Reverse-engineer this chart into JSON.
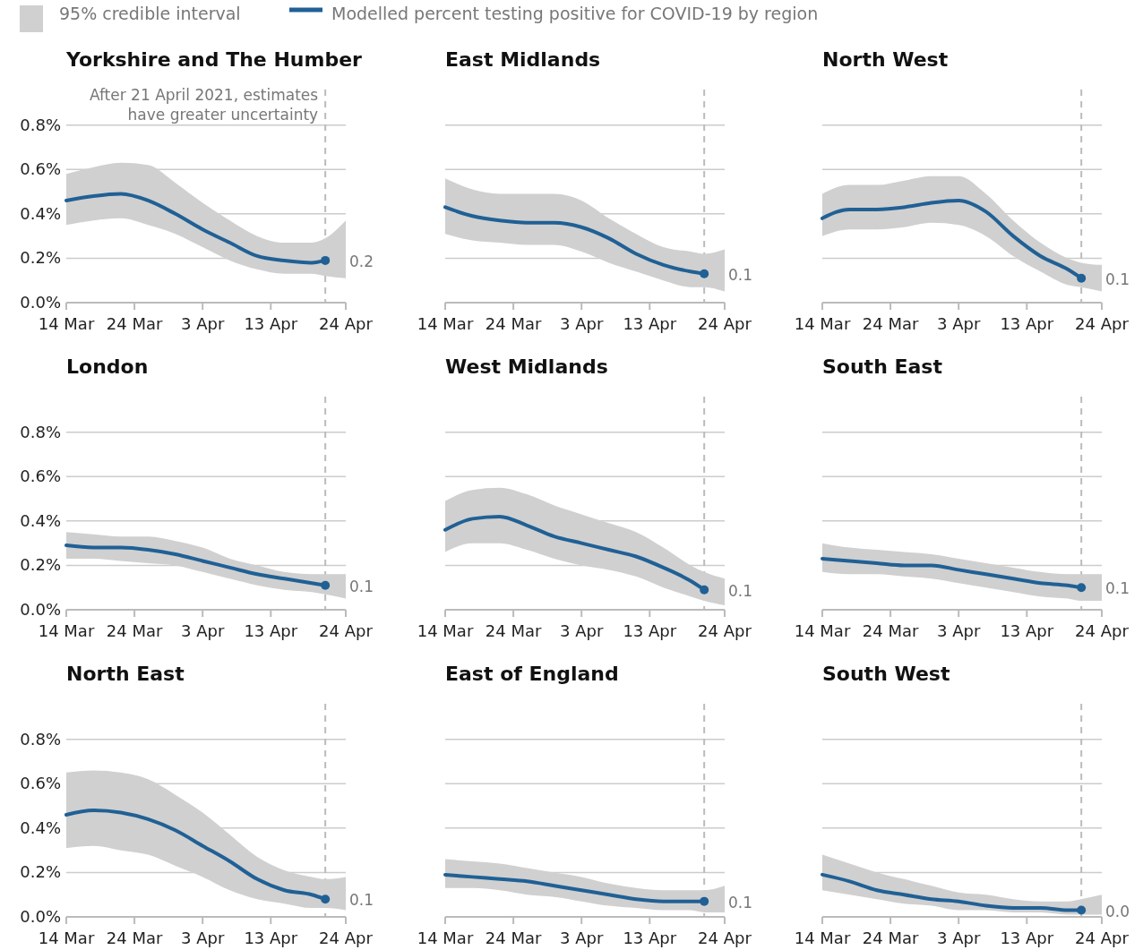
{
  "chart_data": [
    {
      "type": "line",
      "title": "Yorkshire and The Humber",
      "x": [
        "2021-03-14",
        "2021-03-18",
        "2021-03-22",
        "2021-03-26",
        "2021-03-30",
        "2021-04-03",
        "2021-04-07",
        "2021-04-11",
        "2021-04-15",
        "2021-04-19",
        "2021-04-21",
        "2021-04-24"
      ],
      "xlim": [
        "2021-03-14",
        "2021-04-24"
      ],
      "xticks": [
        {
          "value": "2021-03-14",
          "label": "14 Mar"
        },
        {
          "value": "2021-03-24",
          "label": "24 Mar"
        },
        {
          "value": "2021-04-03",
          "label": "3 Apr"
        },
        {
          "value": "2021-04-13",
          "label": "13 Apr"
        },
        {
          "value": "2021-04-24",
          "label": "24 Apr"
        }
      ],
      "ylim": [
        0,
        0.96
      ],
      "yticks": [
        {
          "value": 0,
          "label": "0.0%"
        },
        {
          "value": 0.2,
          "label": "0.2%"
        },
        {
          "value": 0.4,
          "label": "0.4%"
        },
        {
          "value": 0.6,
          "label": "0.6%"
        },
        {
          "value": 0.8,
          "label": "0.8%"
        }
      ],
      "grid": "y",
      "legend": "top",
      "annotations": [
        "95% credible interval"
      ],
      "ref_lines": [
        {
          "axis": "x",
          "value": "2021-04-21",
          "label": "After 21 April 2021, estimates have greater uncertainty",
          "color": "#bbbbbb",
          "line_style": "dashed"
        }
      ],
      "series": [
        {
          "name": "Modelled percent testing positive for COVID-19 by region",
          "color": "#206095",
          "values": [
            0.46,
            0.48,
            0.49,
            0.46,
            0.4,
            0.33,
            0.27,
            0.21,
            0.19,
            0.18,
            0.19,
            null
          ],
          "lower": [
            0.35,
            0.37,
            0.38,
            0.35,
            0.31,
            0.25,
            0.19,
            0.15,
            0.13,
            0.13,
            0.12,
            0.11
          ],
          "upper": [
            0.58,
            0.61,
            0.63,
            0.62,
            0.54,
            0.45,
            0.37,
            0.3,
            0.27,
            0.27,
            0.29,
            0.37
          ],
          "value_labels": [
            null,
            null,
            null,
            null,
            null,
            null,
            null,
            null,
            null,
            null,
            "0.2",
            null
          ]
        }
      ]
    },
    {
      "type": "line",
      "title": "East Midlands",
      "x": [
        "2021-03-14",
        "2021-03-18",
        "2021-03-22",
        "2021-03-26",
        "2021-03-30",
        "2021-04-03",
        "2021-04-07",
        "2021-04-11",
        "2021-04-15",
        "2021-04-19",
        "2021-04-21",
        "2021-04-24"
      ],
      "xlim": [
        "2021-03-14",
        "2021-04-24"
      ],
      "xticks": [
        {
          "value": "2021-03-14",
          "label": "14 Mar"
        },
        {
          "value": "2021-03-24",
          "label": "24 Mar"
        },
        {
          "value": "2021-04-03",
          "label": "3 Apr"
        },
        {
          "value": "2021-04-13",
          "label": "13 Apr"
        },
        {
          "value": "2021-04-24",
          "label": "24 Apr"
        }
      ],
      "ylim": [
        0,
        0.96
      ],
      "yticks": [
        0,
        0.2,
        0.4,
        0.6,
        0.8
      ],
      "grid": "y",
      "tick_labels": "x",
      "ref_lines": [
        {
          "axis": "x",
          "value": "2021-04-21",
          "label": null,
          "color": "#bbbbbb",
          "line_style": "dashed"
        }
      ],
      "series": [
        {
          "color": "#206095",
          "values": [
            0.43,
            0.39,
            0.37,
            0.36,
            0.36,
            0.34,
            0.29,
            0.22,
            0.17,
            0.14,
            0.13,
            null
          ],
          "lower": [
            0.31,
            0.28,
            0.27,
            0.26,
            0.26,
            0.23,
            0.18,
            0.14,
            0.1,
            0.07,
            0.07,
            0.05
          ],
          "upper": [
            0.56,
            0.51,
            0.49,
            0.49,
            0.49,
            0.46,
            0.38,
            0.31,
            0.25,
            0.23,
            0.22,
            0.24
          ],
          "value_labels": [
            null,
            null,
            null,
            null,
            null,
            null,
            null,
            null,
            null,
            null,
            "0.1",
            null
          ]
        }
      ]
    },
    {
      "type": "line",
      "title": "North West",
      "x": [
        "2021-03-14",
        "2021-03-18",
        "2021-03-22",
        "2021-03-26",
        "2021-03-30",
        "2021-04-03",
        "2021-04-07",
        "2021-04-11",
        "2021-04-15",
        "2021-04-19",
        "2021-04-21",
        "2021-04-24"
      ],
      "xlim": [
        "2021-03-14",
        "2021-04-24"
      ],
      "xticks": [
        {
          "value": "2021-03-14",
          "label": "14 Mar"
        },
        {
          "value": "2021-03-24",
          "label": "24 Mar"
        },
        {
          "value": "2021-04-03",
          "label": "3 Apr"
        },
        {
          "value": "2021-04-13",
          "label": "13 Apr"
        },
        {
          "value": "2021-04-24",
          "label": "24 Apr"
        }
      ],
      "ylim": [
        0,
        0.96
      ],
      "yticks": [
        0,
        0.2,
        0.4,
        0.6,
        0.8
      ],
      "grid": "y",
      "tick_labels": "x",
      "ref_lines": [
        {
          "axis": "x",
          "value": "2021-04-21",
          "label": null,
          "color": "#bbbbbb",
          "line_style": "dashed"
        }
      ],
      "series": [
        {
          "color": "#206095",
          "values": [
            0.38,
            0.42,
            0.42,
            0.43,
            0.45,
            0.46,
            0.41,
            0.3,
            0.21,
            0.15,
            0.11,
            null
          ],
          "lower": [
            0.3,
            0.33,
            0.33,
            0.34,
            0.36,
            0.35,
            0.3,
            0.21,
            0.14,
            0.08,
            0.07,
            0.05
          ],
          "upper": [
            0.49,
            0.53,
            0.53,
            0.55,
            0.57,
            0.57,
            0.49,
            0.37,
            0.27,
            0.2,
            0.18,
            0.17
          ],
          "value_labels": [
            null,
            null,
            null,
            null,
            null,
            null,
            null,
            null,
            null,
            null,
            "0.1",
            null
          ]
        }
      ]
    },
    {
      "type": "line",
      "title": "London",
      "x": [
        "2021-03-14",
        "2021-03-18",
        "2021-03-22",
        "2021-03-26",
        "2021-03-30",
        "2021-04-03",
        "2021-04-07",
        "2021-04-11",
        "2021-04-15",
        "2021-04-19",
        "2021-04-21",
        "2021-04-24"
      ],
      "xlim": [
        "2021-03-14",
        "2021-04-24"
      ],
      "xticks": [
        {
          "value": "2021-03-14",
          "label": "14 Mar"
        },
        {
          "value": "2021-03-24",
          "label": "24 Mar"
        },
        {
          "value": "2021-04-03",
          "label": "3 Apr"
        },
        {
          "value": "2021-04-13",
          "label": "13 Apr"
        },
        {
          "value": "2021-04-24",
          "label": "24 Apr"
        }
      ],
      "ylim": [
        0,
        0.96
      ],
      "yticks": [
        {
          "value": 0,
          "label": "0.0%"
        },
        {
          "value": 0.2,
          "label": "0.2%"
        },
        {
          "value": 0.4,
          "label": "0.4%"
        },
        {
          "value": 0.6,
          "label": "0.6%"
        },
        {
          "value": 0.8,
          "label": "0.8%"
        }
      ],
      "grid": "y",
      "ref_lines": [
        {
          "axis": "x",
          "value": "2021-04-21",
          "label": null,
          "color": "#bbbbbb",
          "line_style": "dashed"
        }
      ],
      "series": [
        {
          "color": "#206095",
          "values": [
            0.29,
            0.28,
            0.28,
            0.27,
            0.25,
            0.22,
            0.19,
            0.16,
            0.14,
            0.12,
            0.11,
            null
          ],
          "lower": [
            0.23,
            0.23,
            0.22,
            0.21,
            0.2,
            0.17,
            0.14,
            0.11,
            0.09,
            0.08,
            0.07,
            0.05
          ],
          "upper": [
            0.35,
            0.34,
            0.33,
            0.33,
            0.31,
            0.28,
            0.23,
            0.2,
            0.17,
            0.16,
            0.16,
            0.16
          ],
          "value_labels": [
            null,
            null,
            null,
            null,
            null,
            null,
            null,
            null,
            null,
            null,
            "0.1",
            null
          ]
        }
      ]
    },
    {
      "type": "line",
      "title": "West Midlands",
      "x": [
        "2021-03-14",
        "2021-03-18",
        "2021-03-22",
        "2021-03-26",
        "2021-03-30",
        "2021-04-03",
        "2021-04-07",
        "2021-04-11",
        "2021-04-15",
        "2021-04-19",
        "2021-04-21",
        "2021-04-24"
      ],
      "xlim": [
        "2021-03-14",
        "2021-04-24"
      ],
      "xticks": [
        {
          "value": "2021-03-14",
          "label": "14 Mar"
        },
        {
          "value": "2021-03-24",
          "label": "24 Mar"
        },
        {
          "value": "2021-04-03",
          "label": "3 Apr"
        },
        {
          "value": "2021-04-13",
          "label": "13 Apr"
        },
        {
          "value": "2021-04-24",
          "label": "24 Apr"
        }
      ],
      "ylim": [
        0,
        0.96
      ],
      "yticks": [
        0,
        0.2,
        0.4,
        0.6,
        0.8
      ],
      "grid": "y",
      "tick_labels": "x",
      "ref_lines": [
        {
          "axis": "x",
          "value": "2021-04-21",
          "label": null,
          "color": "#bbbbbb",
          "line_style": "dashed"
        }
      ],
      "series": [
        {
          "color": "#206095",
          "values": [
            0.36,
            0.41,
            0.42,
            0.38,
            0.33,
            0.3,
            0.27,
            0.24,
            0.19,
            0.13,
            0.09,
            null
          ],
          "lower": [
            0.26,
            0.3,
            0.3,
            0.27,
            0.23,
            0.2,
            0.18,
            0.15,
            0.1,
            0.06,
            0.04,
            0.02
          ],
          "upper": [
            0.49,
            0.54,
            0.55,
            0.52,
            0.47,
            0.43,
            0.39,
            0.35,
            0.28,
            0.2,
            0.17,
            0.14
          ],
          "value_labels": [
            null,
            null,
            null,
            null,
            null,
            null,
            null,
            null,
            null,
            null,
            "0.1",
            null
          ]
        }
      ]
    },
    {
      "type": "line",
      "title": "South East",
      "x": [
        "2021-03-14",
        "2021-03-18",
        "2021-03-22",
        "2021-03-26",
        "2021-03-30",
        "2021-04-03",
        "2021-04-07",
        "2021-04-11",
        "2021-04-15",
        "2021-04-19",
        "2021-04-21",
        "2021-04-24"
      ],
      "xlim": [
        "2021-03-14",
        "2021-04-24"
      ],
      "xticks": [
        {
          "value": "2021-03-14",
          "label": "14 Mar"
        },
        {
          "value": "2021-03-24",
          "label": "24 Mar"
        },
        {
          "value": "2021-04-03",
          "label": "3 Apr"
        },
        {
          "value": "2021-04-13",
          "label": "13 Apr"
        },
        {
          "value": "2021-04-24",
          "label": "24 Apr"
        }
      ],
      "ylim": [
        0,
        0.96
      ],
      "yticks": [
        0,
        0.2,
        0.4,
        0.6,
        0.8
      ],
      "grid": "y",
      "tick_labels": "x",
      "ref_lines": [
        {
          "axis": "x",
          "value": "2021-04-21",
          "label": null,
          "color": "#bbbbbb",
          "line_style": "dashed"
        }
      ],
      "series": [
        {
          "color": "#206095",
          "values": [
            0.23,
            0.22,
            0.21,
            0.2,
            0.2,
            0.18,
            0.16,
            0.14,
            0.12,
            0.11,
            0.1,
            null
          ],
          "lower": [
            0.17,
            0.16,
            0.16,
            0.15,
            0.14,
            0.12,
            0.1,
            0.08,
            0.06,
            0.05,
            0.04,
            0.04
          ],
          "upper": [
            0.3,
            0.28,
            0.27,
            0.26,
            0.25,
            0.23,
            0.21,
            0.19,
            0.17,
            0.16,
            0.16,
            0.16
          ],
          "value_labels": [
            null,
            null,
            null,
            null,
            null,
            null,
            null,
            null,
            null,
            null,
            "0.1",
            null
          ]
        }
      ]
    },
    {
      "type": "line",
      "title": "North East",
      "x": [
        "2021-03-14",
        "2021-03-18",
        "2021-03-22",
        "2021-03-26",
        "2021-03-30",
        "2021-04-03",
        "2021-04-07",
        "2021-04-11",
        "2021-04-15",
        "2021-04-19",
        "2021-04-21",
        "2021-04-24"
      ],
      "xlim": [
        "2021-03-14",
        "2021-04-24"
      ],
      "xticks": [
        {
          "value": "2021-03-14",
          "label": "14 Mar"
        },
        {
          "value": "2021-03-24",
          "label": "24 Mar"
        },
        {
          "value": "2021-04-03",
          "label": "3 Apr"
        },
        {
          "value": "2021-04-13",
          "label": "13 Apr"
        },
        {
          "value": "2021-04-24",
          "label": "24 Apr"
        }
      ],
      "ylim": [
        0,
        0.96
      ],
      "yticks": [
        {
          "value": 0,
          "label": "0.0%"
        },
        {
          "value": 0.2,
          "label": "0.2%"
        },
        {
          "value": 0.4,
          "label": "0.4%"
        },
        {
          "value": 0.6,
          "label": "0.6%"
        },
        {
          "value": 0.8,
          "label": "0.8%"
        }
      ],
      "grid": "y",
      "ref_lines": [
        {
          "axis": "x",
          "value": "2021-04-21",
          "label": null,
          "color": "#bbbbbb",
          "line_style": "dashed"
        }
      ],
      "series": [
        {
          "color": "#206095",
          "values": [
            0.46,
            0.48,
            0.47,
            0.44,
            0.39,
            0.32,
            0.25,
            0.17,
            0.12,
            0.1,
            0.08,
            null
          ],
          "lower": [
            0.31,
            0.32,
            0.3,
            0.28,
            0.23,
            0.18,
            0.12,
            0.08,
            0.06,
            0.04,
            0.04,
            0.03
          ],
          "upper": [
            0.65,
            0.66,
            0.65,
            0.62,
            0.55,
            0.47,
            0.37,
            0.27,
            0.21,
            0.18,
            0.17,
            0.18
          ],
          "value_labels": [
            null,
            null,
            null,
            null,
            null,
            null,
            null,
            null,
            null,
            null,
            "0.1",
            null
          ]
        }
      ]
    },
    {
      "type": "line",
      "title": "East of England",
      "x": [
        "2021-03-14",
        "2021-03-18",
        "2021-03-22",
        "2021-03-26",
        "2021-03-30",
        "2021-04-03",
        "2021-04-07",
        "2021-04-11",
        "2021-04-15",
        "2021-04-19",
        "2021-04-21",
        "2021-04-24"
      ],
      "xlim": [
        "2021-03-14",
        "2021-04-24"
      ],
      "xticks": [
        {
          "value": "2021-03-14",
          "label": "14 Mar"
        },
        {
          "value": "2021-03-24",
          "label": "24 Mar"
        },
        {
          "value": "2021-04-03",
          "label": "3 Apr"
        },
        {
          "value": "2021-04-13",
          "label": "13 Apr"
        },
        {
          "value": "2021-04-24",
          "label": "24 Apr"
        }
      ],
      "ylim": [
        0,
        0.96
      ],
      "yticks": [
        0,
        0.2,
        0.4,
        0.6,
        0.8
      ],
      "grid": "y",
      "tick_labels": "x",
      "ref_lines": [
        {
          "axis": "x",
          "value": "2021-04-21",
          "label": null,
          "color": "#bbbbbb",
          "line_style": "dashed"
        }
      ],
      "series": [
        {
          "color": "#206095",
          "values": [
            0.19,
            0.18,
            0.17,
            0.16,
            0.14,
            0.12,
            0.1,
            0.08,
            0.07,
            0.07,
            0.07,
            null
          ],
          "lower": [
            0.13,
            0.13,
            0.12,
            0.1,
            0.09,
            0.07,
            0.05,
            0.04,
            0.03,
            0.03,
            0.02,
            0.02
          ],
          "upper": [
            0.26,
            0.25,
            0.24,
            0.22,
            0.2,
            0.18,
            0.15,
            0.13,
            0.12,
            0.12,
            0.12,
            0.14
          ],
          "value_labels": [
            null,
            null,
            null,
            null,
            null,
            null,
            null,
            null,
            null,
            null,
            "0.1",
            null
          ]
        }
      ]
    },
    {
      "type": "line",
      "title": "South West",
      "x": [
        "2021-03-14",
        "2021-03-18",
        "2021-03-22",
        "2021-03-26",
        "2021-03-30",
        "2021-04-03",
        "2021-04-07",
        "2021-04-11",
        "2021-04-15",
        "2021-04-19",
        "2021-04-21",
        "2021-04-24"
      ],
      "xlim": [
        "2021-03-14",
        "2021-04-24"
      ],
      "xticks": [
        {
          "value": "2021-03-14",
          "label": "14 Mar"
        },
        {
          "value": "2021-03-24",
          "label": "24 Mar"
        },
        {
          "value": "2021-04-03",
          "label": "3 Apr"
        },
        {
          "value": "2021-04-13",
          "label": "13 Apr"
        },
        {
          "value": "2021-04-24",
          "label": "24 Apr"
        }
      ],
      "ylim": [
        0,
        0.96
      ],
      "yticks": [
        0,
        0.2,
        0.4,
        0.6,
        0.8
      ],
      "grid": "y",
      "tick_labels": "x",
      "ref_lines": [
        {
          "axis": "x",
          "value": "2021-04-21",
          "label": null,
          "color": "#bbbbbb",
          "line_style": "dashed"
        }
      ],
      "series": [
        {
          "color": "#206095",
          "values": [
            0.19,
            0.16,
            0.12,
            0.1,
            0.08,
            0.07,
            0.05,
            0.04,
            0.04,
            0.03,
            0.03,
            null
          ],
          "lower": [
            0.12,
            0.1,
            0.08,
            0.06,
            0.05,
            0.03,
            0.03,
            0.02,
            0.02,
            0.01,
            0.01,
            0.01
          ],
          "upper": [
            0.28,
            0.24,
            0.2,
            0.17,
            0.14,
            0.11,
            0.1,
            0.08,
            0.07,
            0.07,
            0.08,
            0.1
          ],
          "value_labels": [
            null,
            null,
            null,
            null,
            null,
            null,
            null,
            null,
            null,
            null,
            "0.0",
            null
          ]
        }
      ]
    }
  ]
}
